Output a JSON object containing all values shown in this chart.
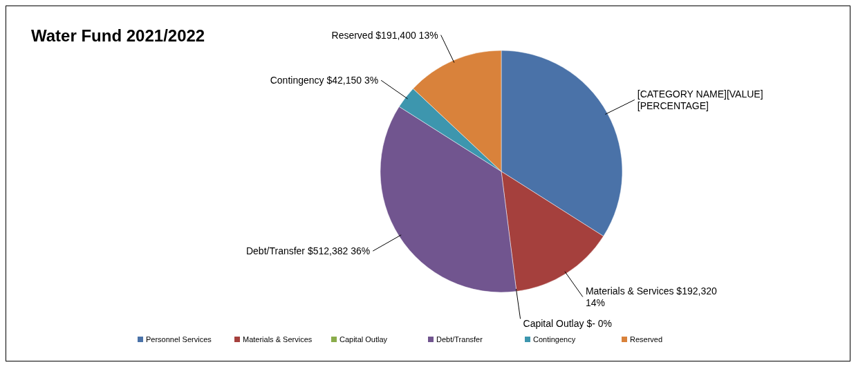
{
  "chart_data": {
    "type": "pie",
    "title": "Water Fund 2021/2022",
    "categories": [
      "Personnel Services",
      "Materials & Services",
      "Capital Outlay",
      "Debt/Transfer",
      "Contingency",
      "Reserved"
    ],
    "values": [
      34,
      14,
      0,
      36,
      3,
      13
    ],
    "value_labels": [
      "[CATEGORY NAME][VALUE] [PERCENTAGE]",
      "Materials & Services  $192,320 14%",
      "Capital Outlay $-   0%",
      "Debt/Transfer  $512,382  36%",
      "Contingency  $42,150  3%",
      "Reserved  $191,400  13%"
    ],
    "colors": [
      "#4a72a8",
      "#a5403d",
      "#8aac4a",
      "#71558f",
      "#3d96ae",
      "#d9823b"
    ],
    "legend": "bottom"
  }
}
